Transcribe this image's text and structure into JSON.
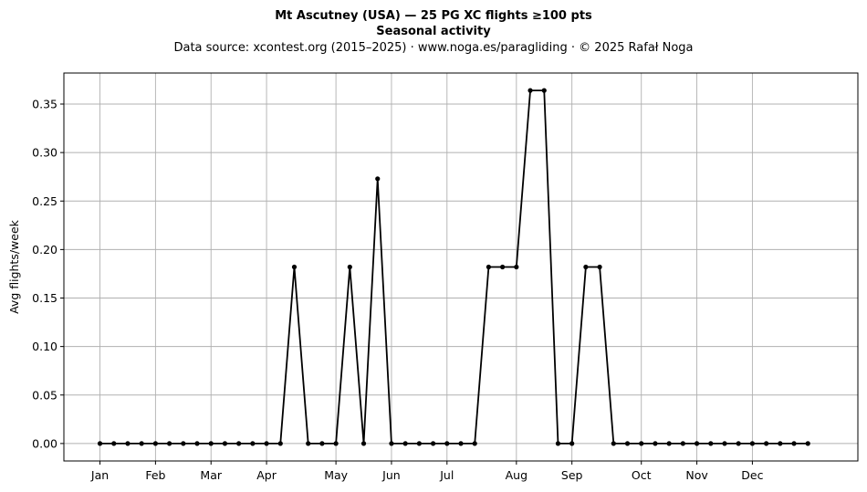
{
  "chart_data": {
    "type": "line",
    "title": "Mt Ascutney (USA)  —  25 PG XC flights ≥100 pts",
    "title_line2": "Seasonal activity",
    "subtitle": "Data source: xcontest.org (2015–2025)  ·  www.noga.es/paragliding  ·  © 2025 Rafał Noga",
    "xlabel": "",
    "ylabel": "Avg flights/week",
    "ylim": [
      -0.018,
      0.382
    ],
    "xlim": [
      -2.6,
      54.6
    ],
    "grid": true,
    "month_ticks": [
      {
        "label": "Jan",
        "week": 0
      },
      {
        "label": "Feb",
        "week": 4
      },
      {
        "label": "Mar",
        "week": 8
      },
      {
        "label": "Apr",
        "week": 12
      },
      {
        "label": "May",
        "week": 17
      },
      {
        "label": "Jun",
        "week": 21
      },
      {
        "label": "Jul",
        "week": 25
      },
      {
        "label": "Aug",
        "week": 30
      },
      {
        "label": "Sep",
        "week": 34
      },
      {
        "label": "Oct",
        "week": 39
      },
      {
        "label": "Nov",
        "week": 43
      },
      {
        "label": "Dec",
        "week": 47
      }
    ],
    "y_ticks": [
      0.0,
      0.05,
      0.1,
      0.15,
      0.2,
      0.25,
      0.3,
      0.35
    ],
    "y_tick_labels": [
      "0.00",
      "0.05",
      "0.10",
      "0.15",
      "0.20",
      "0.25",
      "0.30",
      "0.35"
    ],
    "series": [
      {
        "color": "#000000",
        "values": [
          0,
          0,
          0,
          0,
          0,
          0,
          0,
          0,
          0,
          0,
          0,
          0,
          0,
          0,
          0.182,
          0,
          0,
          0,
          0.182,
          0,
          0.273,
          0,
          0,
          0,
          0,
          0,
          0,
          0,
          0.182,
          0.182,
          0.182,
          0.364,
          0.364,
          0,
          0,
          0.182,
          0.182,
          0,
          0,
          0,
          0,
          0,
          0,
          0,
          0,
          0,
          0,
          0,
          0,
          0,
          0,
          0
        ]
      }
    ]
  }
}
